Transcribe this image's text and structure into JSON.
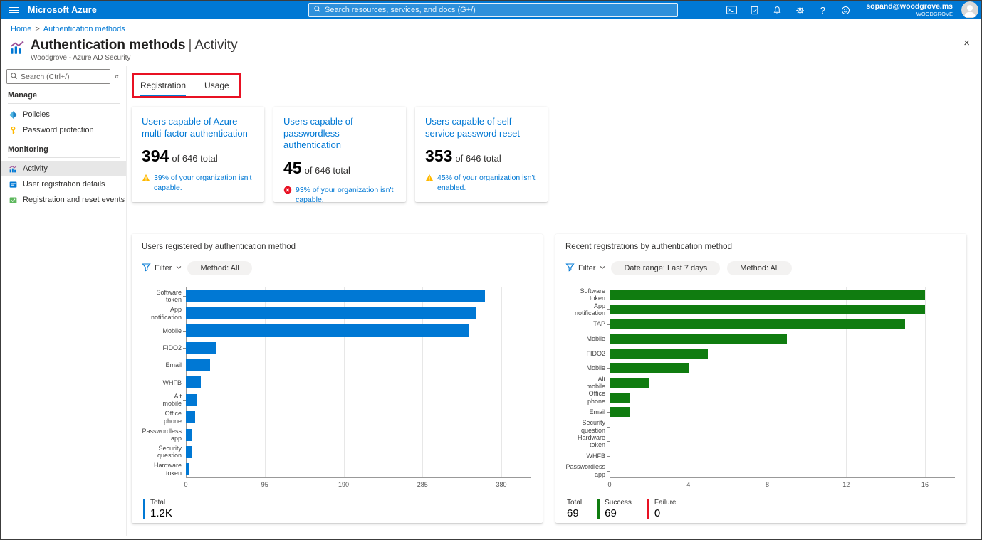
{
  "ui": {
    "filter_label": "Filter",
    "collapse_glyph": "«",
    "breadcrumb_separator": ">",
    "close_glyph": "×",
    "question_glyph": "?"
  },
  "topbar": {
    "brand": "Microsoft Azure",
    "search_placeholder": "Search resources, services, and docs (G+/)",
    "account": {
      "email": "sopand@woodgrove.ms",
      "tenant": "WOODGROVE"
    }
  },
  "breadcrumb": {
    "items": [
      "Home",
      "Authentication methods"
    ]
  },
  "page": {
    "title": "Authentication methods",
    "title_separator": "|",
    "title_suffix": "Activity",
    "subtitle": "Woodgrove - Azure AD Security"
  },
  "sidebar": {
    "search_placeholder": "Search (Ctrl+/)",
    "sections": [
      {
        "header": "Manage",
        "items": [
          {
            "label": "Policies",
            "icon": "policy-icon"
          },
          {
            "label": "Password protection",
            "icon": "key-icon"
          }
        ]
      },
      {
        "header": "Monitoring",
        "items": [
          {
            "label": "Activity",
            "icon": "activity-chart-icon",
            "selected": true
          },
          {
            "label": "User registration details",
            "icon": "registration-details-icon"
          },
          {
            "label": "Registration and reset events",
            "icon": "reset-events-icon"
          }
        ]
      }
    ]
  },
  "tabs": [
    {
      "label": "Registration",
      "selected": true
    },
    {
      "label": "Usage",
      "selected": false
    }
  ],
  "cards": [
    {
      "title": "Users capable of Azure multi-factor authentication",
      "value": "394",
      "of": "of 646 total",
      "note": "39% of your organization isn't capable.",
      "severity": "warning"
    },
    {
      "title": "Users capable of passwordless authentication",
      "value": "45",
      "of": "of 646 total",
      "note": "93% of your organization isn't capable.",
      "severity": "error"
    },
    {
      "title": "Users capable of self-service password reset",
      "value": "353",
      "of": "of 646 total",
      "note": "45% of your organization isn't enabled.",
      "severity": "warning"
    }
  ],
  "chart_data": [
    {
      "type": "bar",
      "orientation": "horizontal",
      "title": "Users registered by authentication method",
      "filters": [
        {
          "label": "Method: All"
        }
      ],
      "categories": [
        "Software\ntoken",
        "App\nnotification",
        "Mobile",
        "FIDO2",
        "Email",
        "WHFB",
        "Alt\nmobile",
        "Office\nphone",
        "Passwordless\napp",
        "Security\nquestion",
        "Hardware\ntoken"
      ],
      "values": [
        360,
        350,
        341,
        36,
        29,
        18,
        13,
        11,
        7,
        7,
        4
      ],
      "xlim": [
        0,
        380
      ],
      "xticks": [
        0,
        95,
        190,
        285,
        380
      ],
      "bar_color": "#0078d4",
      "grid": true,
      "legend_position": "bottom",
      "legend": [
        {
          "label": "Total",
          "value": "1.2K",
          "color": "#0078d4"
        }
      ]
    },
    {
      "type": "bar",
      "orientation": "horizontal",
      "title": "Recent registrations by authentication method",
      "filters": [
        {
          "label": "Date range: Last 7 days"
        },
        {
          "label": "Method: All"
        }
      ],
      "categories": [
        "Software\ntoken",
        "App\nnotification",
        "TAP",
        "Mobile",
        "FIDO2",
        "Mobile",
        "Alt\nmobile",
        "Office\nphone",
        "Email",
        "Security\nquestion",
        "Hardware\ntoken",
        "WHFB",
        "Passwordless\napp"
      ],
      "values": [
        16,
        16,
        15,
        9,
        5,
        4,
        2,
        1,
        1,
        0,
        0,
        0,
        0
      ],
      "xlim": [
        0,
        16
      ],
      "xticks": [
        0,
        4,
        8,
        12,
        16
      ],
      "bar_color": "#107c10",
      "grid": true,
      "legend_position": "bottom",
      "legend": [
        {
          "label": "Total",
          "value": "69",
          "color": "none"
        },
        {
          "label": "Success",
          "value": "69",
          "color": "#107c10"
        },
        {
          "label": "Failure",
          "value": "0",
          "color": "#e81123"
        }
      ]
    }
  ],
  "colors": {
    "accent_blue": "#0078d4",
    "bar_blue": "#0078d4",
    "bar_green": "#107c10",
    "failure_red": "#e81123",
    "warning_yellow": "#ffb900",
    "annotation_red": "#e81123"
  }
}
